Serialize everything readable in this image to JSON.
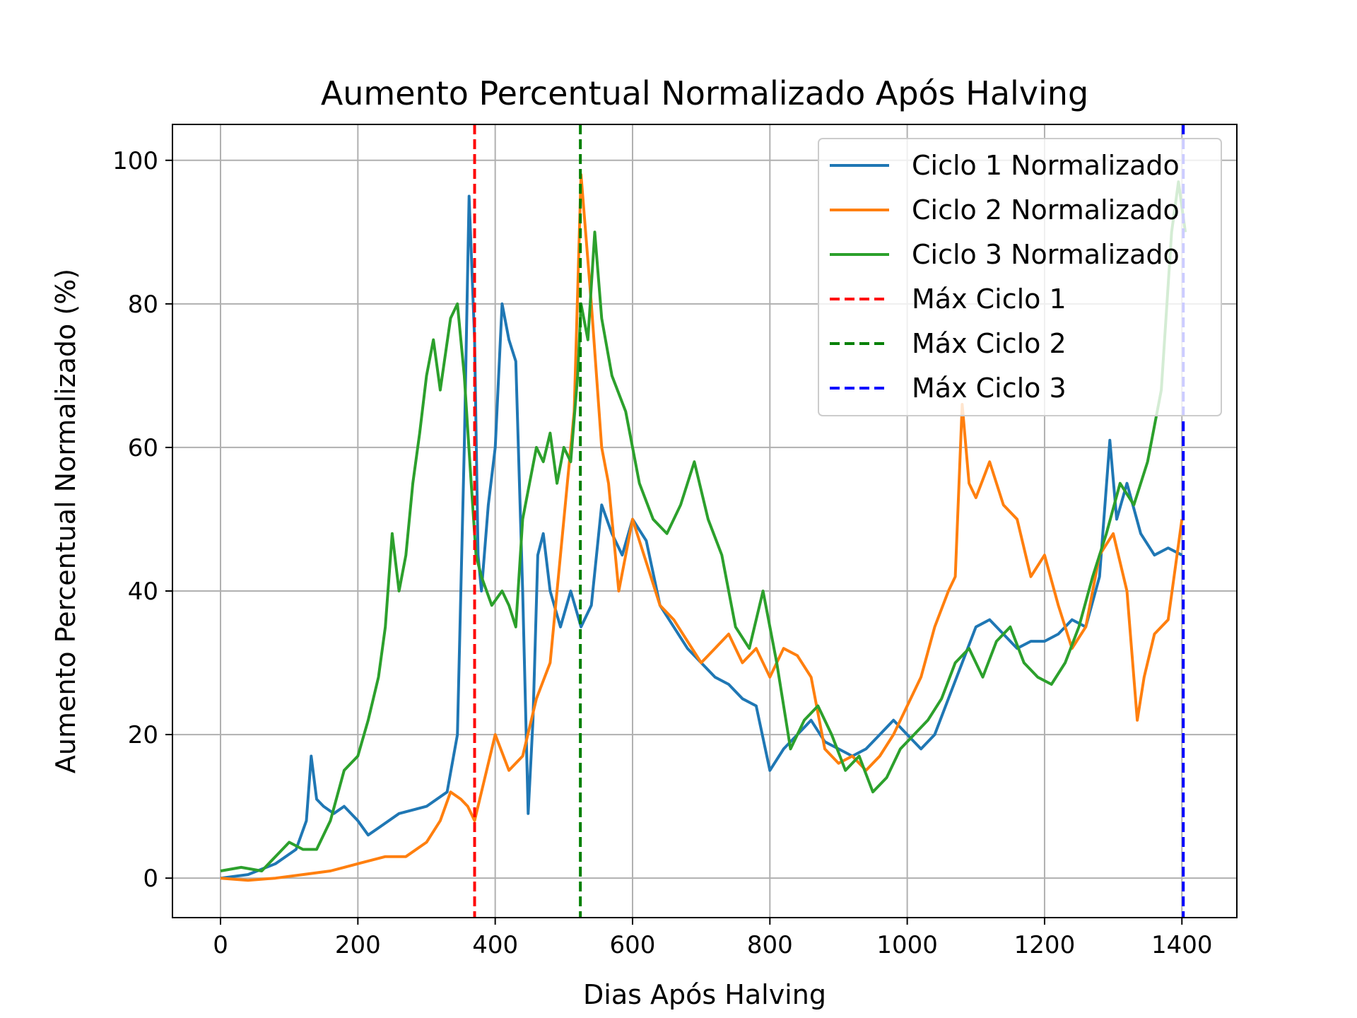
{
  "chart_data": {
    "type": "line",
    "title": "Aumento Percentual Normalizado Após Halving",
    "xlabel": "Dias Após Halving",
    "ylabel": "Aumento Percentual Normalizado (%)",
    "xlim": [
      -70,
      1480
    ],
    "ylim": [
      -5.5,
      105
    ],
    "xticks": [
      0,
      200,
      400,
      600,
      800,
      1000,
      1200,
      1400
    ],
    "yticks": [
      0,
      20,
      40,
      60,
      80,
      100
    ],
    "grid": true,
    "legend_position": "top-right",
    "series": [
      {
        "name": "Ciclo 1 Normalizado",
        "color": "#1f77b4",
        "x": [
          0,
          40,
          80,
          110,
          125,
          132,
          140,
          150,
          165,
          180,
          200,
          215,
          230,
          260,
          300,
          330,
          345,
          355,
          362,
          370,
          375,
          380,
          390,
          400,
          410,
          420,
          430,
          440,
          448,
          455,
          462,
          470,
          480,
          495,
          510,
          525,
          540,
          555,
          570,
          585,
          600,
          620,
          640,
          660,
          680,
          700,
          720,
          740,
          760,
          780,
          800,
          820,
          840,
          860,
          880,
          900,
          920,
          940,
          960,
          980,
          1000,
          1020,
          1040,
          1060,
          1080,
          1100,
          1120,
          1140,
          1160,
          1180,
          1200,
          1220,
          1240,
          1260,
          1280,
          1295,
          1305,
          1320,
          1340,
          1360,
          1380,
          1400
        ],
        "y": [
          0,
          0.5,
          2,
          4,
          8,
          17,
          11,
          10,
          9,
          10,
          8,
          6,
          7,
          9,
          10,
          12,
          20,
          60,
          95,
          75,
          45,
          40,
          52,
          60,
          80,
          75,
          72,
          40,
          9,
          22,
          45,
          48,
          40,
          35,
          40,
          35,
          38,
          52,
          48,
          45,
          50,
          47,
          38,
          35,
          32,
          30,
          28,
          27,
          25,
          24,
          15,
          18,
          20,
          22,
          19,
          18,
          17,
          18,
          20,
          22,
          20,
          18,
          20,
          25,
          30,
          35,
          36,
          34,
          32,
          33,
          33,
          34,
          36,
          35,
          42,
          61,
          50,
          55,
          48,
          45,
          46,
          45
        ]
      },
      {
        "name": "Ciclo 2 Normalizado",
        "color": "#ff7f0e",
        "x": [
          0,
          40,
          80,
          120,
          160,
          180,
          200,
          240,
          270,
          300,
          320,
          335,
          350,
          360,
          370,
          380,
          400,
          420,
          440,
          460,
          480,
          495,
          505,
          515,
          525,
          540,
          555,
          565,
          580,
          590,
          600,
          620,
          640,
          660,
          680,
          700,
          720,
          740,
          760,
          780,
          800,
          820,
          840,
          860,
          880,
          900,
          920,
          940,
          960,
          980,
          1000,
          1020,
          1040,
          1060,
          1070,
          1080,
          1090,
          1100,
          1120,
          1140,
          1160,
          1180,
          1200,
          1220,
          1240,
          1260,
          1280,
          1300,
          1320,
          1335,
          1345,
          1360,
          1380,
          1400
        ],
        "y": [
          0,
          -0.3,
          0,
          0.5,
          1,
          1.5,
          2,
          3,
          3,
          5,
          8,
          12,
          11,
          10,
          8,
          12,
          20,
          15,
          17,
          25,
          30,
          45,
          55,
          65,
          98,
          80,
          60,
          55,
          40,
          45,
          50,
          44,
          38,
          36,
          33,
          30,
          32,
          34,
          30,
          32,
          28,
          32,
          31,
          28,
          18,
          16,
          17,
          15,
          17,
          20,
          24,
          28,
          35,
          40,
          42,
          66,
          55,
          53,
          58,
          52,
          50,
          42,
          45,
          38,
          32,
          35,
          45,
          48,
          40,
          22,
          28,
          34,
          36,
          50
        ]
      },
      {
        "name": "Ciclo 3 Normalizado",
        "color": "#2ca02c",
        "x": [
          0,
          30,
          60,
          80,
          100,
          120,
          140,
          160,
          180,
          200,
          215,
          230,
          240,
          250,
          260,
          270,
          280,
          290,
          300,
          310,
          320,
          335,
          345,
          355,
          365,
          372,
          380,
          395,
          410,
          420,
          430,
          440,
          450,
          460,
          470,
          480,
          490,
          500,
          510,
          520,
          525,
          535,
          545,
          555,
          570,
          590,
          610,
          630,
          650,
          670,
          690,
          710,
          730,
          750,
          770,
          790,
          810,
          830,
          850,
          870,
          890,
          910,
          930,
          950,
          970,
          990,
          1010,
          1030,
          1050,
          1070,
          1090,
          1110,
          1130,
          1150,
          1170,
          1190,
          1210,
          1230,
          1250,
          1270,
          1290,
          1310,
          1330,
          1350,
          1370,
          1385,
          1395,
          1405
        ],
        "y": [
          1,
          1.5,
          1,
          3,
          5,
          4,
          4,
          8,
          15,
          17,
          22,
          28,
          35,
          48,
          40,
          45,
          55,
          62,
          70,
          75,
          68,
          78,
          80,
          70,
          55,
          45,
          42,
          38,
          40,
          38,
          35,
          50,
          55,
          60,
          58,
          62,
          55,
          60,
          58,
          70,
          80,
          75,
          90,
          78,
          70,
          65,
          55,
          50,
          48,
          52,
          58,
          50,
          45,
          35,
          32,
          40,
          30,
          18,
          22,
          24,
          20,
          15,
          17,
          12,
          14,
          18,
          20,
          22,
          25,
          30,
          32,
          28,
          33,
          35,
          30,
          28,
          27,
          30,
          35,
          42,
          48,
          55,
          52,
          58,
          68,
          90,
          97,
          90
        ]
      }
    ],
    "vlines": [
      {
        "name": "Máx Ciclo 1",
        "x": 370,
        "color": "#ff0000"
      },
      {
        "name": "Máx Ciclo 2",
        "x": 524,
        "color": "#008000"
      },
      {
        "name": "Máx Ciclo 3",
        "x": 1402,
        "color": "#0000ff"
      }
    ]
  }
}
